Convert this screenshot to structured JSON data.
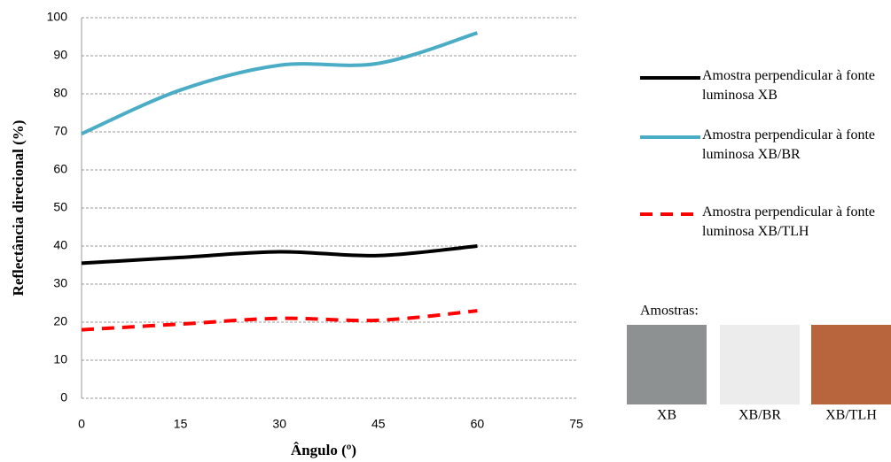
{
  "chart_data": {
    "type": "line",
    "x_label": "Ângulo (º)",
    "y_label": "Reflectância direcional (%)",
    "x": [
      0,
      15,
      30,
      45,
      60
    ],
    "series": [
      {
        "name": "Amostra perpendicular à fonte luminosa XB",
        "color": "#000000",
        "dash": false,
        "values": [
          35.5,
          37,
          38.5,
          37.5,
          40
        ]
      },
      {
        "name": "Amostra perpendicular à fonte luminosa XB/BR",
        "color": "#4bacc6",
        "dash": false,
        "values": [
          69.5,
          81,
          87.5,
          88,
          96
        ]
      },
      {
        "name": "Amostra perpendicular à fonte luminosa XB/TLH",
        "color": "#ff0000",
        "dash": true,
        "values": [
          18,
          19.5,
          21,
          20.5,
          23
        ]
      }
    ],
    "xlim": [
      0,
      75
    ],
    "xticks": [
      0,
      15,
      30,
      45,
      60,
      75
    ],
    "ylim": [
      0,
      100
    ],
    "yticks": [
      0,
      10,
      20,
      30,
      40,
      50,
      60,
      70,
      80,
      90,
      100
    ],
    "grid": true,
    "legend": "right"
  },
  "samples": {
    "title": "Amostras:",
    "items": [
      {
        "label": "XB",
        "color": "#8e9191"
      },
      {
        "label": "XB/BR",
        "color": "#ececec"
      },
      {
        "label": "XB/TLH",
        "color": "#b8643c"
      }
    ]
  }
}
